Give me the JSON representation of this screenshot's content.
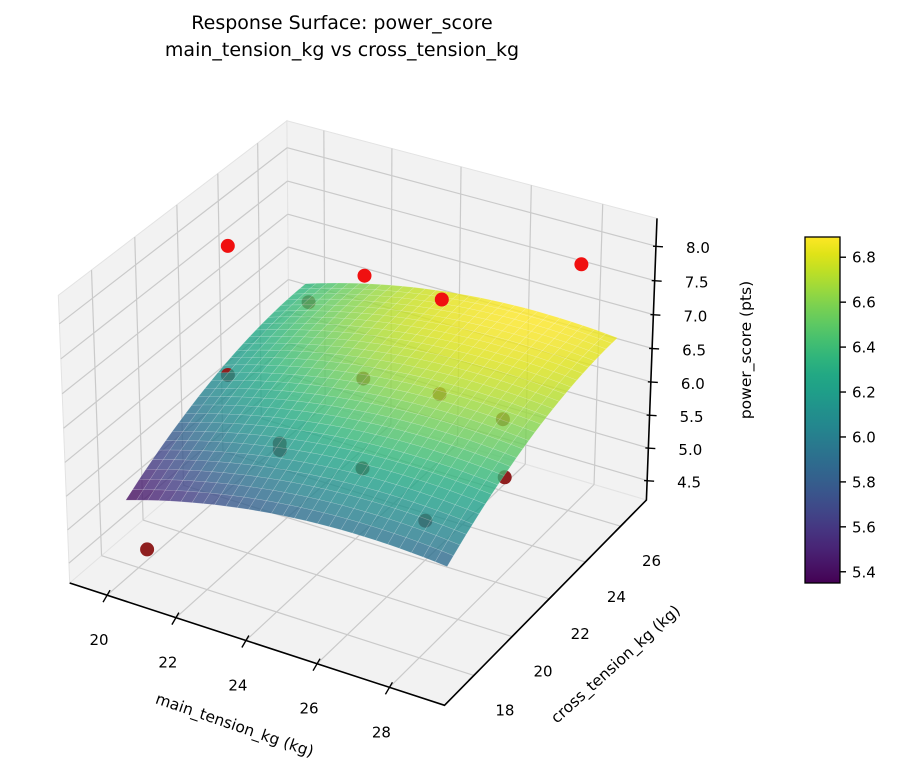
{
  "title": {
    "line1": "Response Surface: power_score",
    "line2": "main_tension_kg vs cross_tension_kg"
  },
  "chart_data": {
    "type": "surface3d_scatter",
    "xlabel": "main_tension_kg (kg)",
    "ylabel": "cross_tension_kg (kg)",
    "zlabel": "power_score (pts)",
    "x_ticks": [
      20,
      22,
      24,
      26,
      28
    ],
    "y_ticks": [
      18,
      20,
      22,
      24,
      26
    ],
    "z_ticks": [
      4.5,
      5.0,
      5.5,
      6.0,
      6.5,
      7.0,
      7.5,
      8.0
    ],
    "xlim": [
      18.9,
      29.5
    ],
    "ylim": [
      16.5,
      27.5
    ],
    "zlim": [
      4.2,
      8.4
    ],
    "colormap": "viridis",
    "legend": "none",
    "grid": true,
    "surface": {
      "x_domain": [
        20,
        29
      ],
      "y_domain": [
        17.5,
        26.5
      ],
      "equation": "power_score = 6.89 - 0.99*((x-20)/9 - 0.75)^2 - 0.98*((y-17.5)/9 - 1)^2",
      "peak_z": 6.89,
      "coef_x": 0.99,
      "coef_y": 0.98,
      "peak_u": 0.75,
      "peak_v": 1.0,
      "z_min": 5.35,
      "z_max": 6.89,
      "alpha": 0.8,
      "mesh_n": 28
    },
    "points": {
      "color": "#f01010",
      "occluded_color": "#8f1f1f",
      "xyz": [
        [
          19.4,
          23.6,
          7.5
        ],
        [
          24.2,
          22.1,
          8.1
        ],
        [
          27.7,
          27.0,
          7.6
        ],
        [
          26.4,
          22.0,
          8.1
        ],
        [
          28.2,
          22.0,
          5.8
        ],
        [
          20.9,
          17.0,
          4.9
        ],
        [
          23.0,
          24.2,
          5.9
        ],
        [
          25.2,
          24.2,
          6.0
        ],
        [
          27.0,
          24.2,
          5.9
        ],
        [
          20.3,
          22.0,
          6.1
        ],
        [
          21.8,
          22.0,
          5.3
        ],
        [
          21.8,
          22.0,
          5.2
        ],
        [
          24.2,
          22.0,
          5.3
        ],
        [
          26.0,
          22.0,
          4.8
        ],
        [
          19.8,
          27.0,
          5.9
        ]
      ]
    },
    "colorbar": {
      "ticks": [
        5.4,
        5.6,
        5.8,
        6.0,
        6.2,
        6.4,
        6.6,
        6.8
      ],
      "vmin": 5.35,
      "vmax": 6.89
    }
  },
  "colors": {
    "pane": "#f2f2f2",
    "grid": "#cacaca",
    "spine": "#000000",
    "text": "#000000",
    "background": "#ffffff"
  }
}
